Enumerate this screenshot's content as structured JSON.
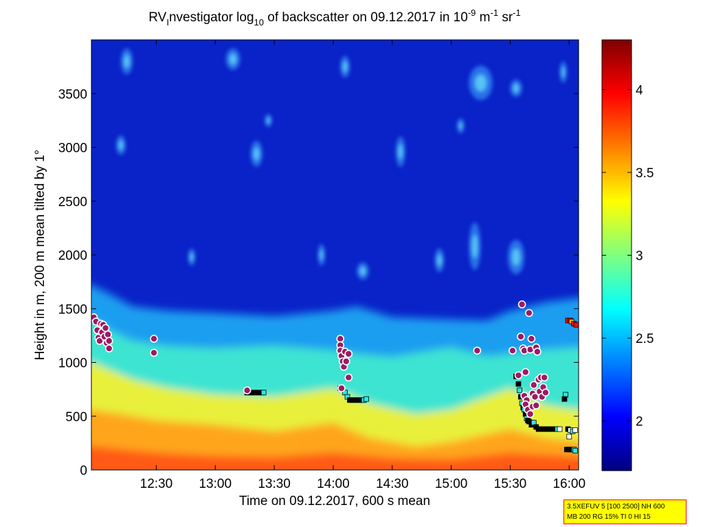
{
  "chart_data": {
    "type": "heatmap",
    "title": {
      "part1": "RV",
      "sub1": "I",
      "part2": "nvestigator log",
      "sub2": "10",
      "part3": " of backscatter on 09.12.2017 in 10",
      "sup1": "-9",
      "part4": " m",
      "sup2": "-1",
      "part5": " sr",
      "sup3": "-1"
    },
    "xlabel": "Time on 09.12.2017, 600 s mean",
    "ylabel": "Height in m, 200 m mean tilted by 1°",
    "x_range_hours": [
      11.95,
      16.08
    ],
    "ylim": [
      0,
      4000
    ],
    "x_ticks": [
      {
        "value": 12.5,
        "label": "12:30"
      },
      {
        "value": 13.0,
        "label": "13:00"
      },
      {
        "value": 13.5,
        "label": "13:30"
      },
      {
        "value": 14.0,
        "label": "14:00"
      },
      {
        "value": 14.5,
        "label": "14:30"
      },
      {
        "value": 15.0,
        "label": "15:00"
      },
      {
        "value": 15.5,
        "label": "15:30"
      },
      {
        "value": 16.0,
        "label": "16:00"
      }
    ],
    "y_ticks": [
      {
        "value": 0,
        "label": "0"
      },
      {
        "value": 500,
        "label": "500"
      },
      {
        "value": 1000,
        "label": "1000"
      },
      {
        "value": 1500,
        "label": "1500"
      },
      {
        "value": 2000,
        "label": "2000"
      },
      {
        "value": 2500,
        "label": "2500"
      },
      {
        "value": 3000,
        "label": "3000"
      },
      {
        "value": 3500,
        "label": "3500"
      }
    ],
    "colorbar": {
      "range": [
        1.7,
        4.3
      ],
      "ticks": [
        {
          "value": 2.0,
          "label": "2"
        },
        {
          "value": 2.5,
          "label": "2.5"
        },
        {
          "value": 3.0,
          "label": "3"
        },
        {
          "value": 3.5,
          "label": "3.5"
        },
        {
          "value": 4.0,
          "label": "4"
        }
      ],
      "colormap": "jet"
    },
    "boundary_layer_top": [
      [
        11.95,
        1720
      ],
      [
        12.1,
        1640
      ],
      [
        12.3,
        1520
      ],
      [
        12.6,
        1480
      ],
      [
        13.0,
        1460
      ],
      [
        13.5,
        1430
      ],
      [
        14.0,
        1480
      ],
      [
        14.2,
        1520
      ],
      [
        14.5,
        1420
      ],
      [
        15.0,
        1400
      ],
      [
        15.3,
        1390
      ],
      [
        15.5,
        1480
      ],
      [
        15.8,
        1560
      ],
      [
        16.08,
        1600
      ]
    ],
    "yellow_layer_top": [
      [
        11.95,
        1000
      ],
      [
        12.3,
        840
      ],
      [
        12.6,
        760
      ],
      [
        13.0,
        700
      ],
      [
        13.5,
        680
      ],
      [
        14.0,
        760
      ],
      [
        14.3,
        620
      ],
      [
        14.7,
        520
      ],
      [
        15.0,
        560
      ],
      [
        15.5,
        760
      ],
      [
        15.8,
        600
      ],
      [
        16.08,
        560
      ]
    ],
    "orange_layer_top": [
      [
        11.95,
        560
      ],
      [
        12.2,
        520
      ],
      [
        12.5,
        460
      ],
      [
        13.0,
        420
      ],
      [
        13.5,
        360
      ],
      [
        14.0,
        440
      ],
      [
        14.3,
        300
      ],
      [
        14.7,
        220
      ],
      [
        15.0,
        260
      ],
      [
        15.5,
        380
      ],
      [
        15.8,
        300
      ],
      [
        16.08,
        260
      ]
    ],
    "red_layer_top": [
      [
        11.95,
        220
      ],
      [
        12.5,
        160
      ],
      [
        13.0,
        130
      ],
      [
        13.5,
        120
      ],
      [
        14.0,
        160
      ],
      [
        14.5,
        110
      ],
      [
        15.0,
        100
      ],
      [
        15.5,
        160
      ],
      [
        16.08,
        120
      ]
    ],
    "cloud_patches": [
      {
        "x": 12.25,
        "y": 3800,
        "rx": 0.05,
        "ry": 120
      },
      {
        "x": 12.2,
        "y": 3020,
        "rx": 0.04,
        "ry": 90
      },
      {
        "x": 13.15,
        "y": 3820,
        "rx": 0.06,
        "ry": 100
      },
      {
        "x": 13.35,
        "y": 2940,
        "rx": 0.05,
        "ry": 120
      },
      {
        "x": 13.45,
        "y": 3250,
        "rx": 0.03,
        "ry": 60
      },
      {
        "x": 14.1,
        "y": 3750,
        "rx": 0.04,
        "ry": 100
      },
      {
        "x": 14.57,
        "y": 2960,
        "rx": 0.04,
        "ry": 140
      },
      {
        "x": 14.25,
        "y": 1850,
        "rx": 0.05,
        "ry": 80
      },
      {
        "x": 15.25,
        "y": 3600,
        "rx": 0.1,
        "ry": 160
      },
      {
        "x": 15.55,
        "y": 3550,
        "rx": 0.05,
        "ry": 80
      },
      {
        "x": 15.2,
        "y": 2080,
        "rx": 0.05,
        "ry": 220
      },
      {
        "x": 15.55,
        "y": 1980,
        "rx": 0.07,
        "ry": 160
      },
      {
        "x": 15.95,
        "y": 3700,
        "rx": 0.03,
        "ry": 100
      },
      {
        "x": 15.08,
        "y": 3200,
        "rx": 0.03,
        "ry": 70
      },
      {
        "x": 12.8,
        "y": 1980,
        "rx": 0.03,
        "ry": 80
      },
      {
        "x": 13.9,
        "y": 2000,
        "rx": 0.03,
        "ry": 100
      },
      {
        "x": 14.9,
        "y": 1950,
        "rx": 0.04,
        "ry": 110
      }
    ],
    "cloud_base_circles": [
      [
        11.97,
        1420
      ],
      [
        11.99,
        1380
      ],
      [
        12.0,
        1300
      ],
      [
        12.01,
        1230
      ],
      [
        12.02,
        1200
      ],
      [
        12.03,
        1360
      ],
      [
        12.04,
        1280
      ],
      [
        12.05,
        1350
      ],
      [
        12.06,
        1240
      ],
      [
        12.07,
        1320
      ],
      [
        12.08,
        1180
      ],
      [
        12.09,
        1260
      ],
      [
        12.1,
        1130
      ],
      [
        12.1,
        1200
      ],
      [
        12.48,
        1220
      ],
      [
        12.48,
        1090
      ],
      [
        13.27,
        740
      ],
      [
        14.06,
        1220
      ],
      [
        14.06,
        1160
      ],
      [
        14.06,
        1110
      ],
      [
        14.07,
        1060
      ],
      [
        14.08,
        1010
      ],
      [
        14.09,
        960
      ],
      [
        14.1,
        1100
      ],
      [
        14.11,
        1010
      ],
      [
        14.13,
        1080
      ],
      [
        14.13,
        860
      ],
      [
        14.07,
        760
      ],
      [
        15.22,
        1110
      ],
      [
        15.52,
        1110
      ],
      [
        15.57,
        880
      ],
      [
        15.59,
        1240
      ],
      [
        15.6,
        1540
      ],
      [
        15.61,
        1130
      ],
      [
        15.62,
        1110
      ],
      [
        15.63,
        910
      ],
      [
        15.62,
        690
      ],
      [
        15.64,
        650
      ],
      [
        15.66,
        1460
      ],
      [
        15.67,
        1120
      ],
      [
        15.68,
        1220
      ],
      [
        15.69,
        710
      ],
      [
        15.7,
        790
      ],
      [
        15.71,
        680
      ],
      [
        15.72,
        1140
      ],
      [
        15.73,
        1100
      ],
      [
        15.74,
        840
      ],
      [
        15.75,
        730
      ],
      [
        15.76,
        860
      ],
      [
        15.77,
        680
      ],
      [
        15.78,
        770
      ],
      [
        15.79,
        860
      ],
      [
        15.8,
        720
      ],
      [
        15.63,
        610
      ],
      [
        15.65,
        560
      ],
      [
        15.67,
        520
      ],
      [
        15.69,
        590
      ],
      [
        15.72,
        600
      ]
    ],
    "cloud_base_squares": [
      {
        "x": 13.27,
        "y": 720,
        "c": "black"
      },
      {
        "x": 13.29,
        "y": 720,
        "c": "black"
      },
      {
        "x": 13.31,
        "y": 720,
        "c": "black"
      },
      {
        "x": 13.33,
        "y": 720,
        "c": "black"
      },
      {
        "x": 13.35,
        "y": 720,
        "c": "black"
      },
      {
        "x": 13.37,
        "y": 720,
        "c": "black"
      },
      {
        "x": 13.39,
        "y": 720,
        "c": "black"
      },
      {
        "x": 13.41,
        "y": 720,
        "c": "cyan"
      },
      {
        "x": 14.06,
        "y": 760,
        "c": "black"
      },
      {
        "x": 14.1,
        "y": 720,
        "c": "cyan"
      },
      {
        "x": 14.12,
        "y": 680,
        "c": "cyan"
      },
      {
        "x": 14.14,
        "y": 650,
        "c": "black"
      },
      {
        "x": 14.16,
        "y": 650,
        "c": "black"
      },
      {
        "x": 14.18,
        "y": 650,
        "c": "black"
      },
      {
        "x": 14.2,
        "y": 650,
        "c": "black"
      },
      {
        "x": 14.22,
        "y": 650,
        "c": "black"
      },
      {
        "x": 14.24,
        "y": 650,
        "c": "black"
      },
      {
        "x": 14.26,
        "y": 650,
        "c": "cyan"
      },
      {
        "x": 14.28,
        "y": 660,
        "c": "cyan"
      },
      {
        "x": 15.55,
        "y": 870,
        "c": "black"
      },
      {
        "x": 15.57,
        "y": 800,
        "c": "black"
      },
      {
        "x": 15.58,
        "y": 740,
        "c": "cyan"
      },
      {
        "x": 15.59,
        "y": 680,
        "c": "black"
      },
      {
        "x": 15.6,
        "y": 620,
        "c": "cyan"
      },
      {
        "x": 15.61,
        "y": 580,
        "c": "black"
      },
      {
        "x": 15.62,
        "y": 560,
        "c": "cyan"
      },
      {
        "x": 15.63,
        "y": 520,
        "c": "black"
      },
      {
        "x": 15.64,
        "y": 480,
        "c": "cyan"
      },
      {
        "x": 15.65,
        "y": 460,
        "c": "black"
      },
      {
        "x": 15.66,
        "y": 450,
        "c": "black"
      },
      {
        "x": 15.68,
        "y": 420,
        "c": "black"
      },
      {
        "x": 15.7,
        "y": 440,
        "c": "cyan"
      },
      {
        "x": 15.72,
        "y": 400,
        "c": "black"
      },
      {
        "x": 15.74,
        "y": 380,
        "c": "black"
      },
      {
        "x": 15.76,
        "y": 380,
        "c": "black"
      },
      {
        "x": 15.78,
        "y": 380,
        "c": "black"
      },
      {
        "x": 15.8,
        "y": 380,
        "c": "black"
      },
      {
        "x": 15.82,
        "y": 380,
        "c": "black"
      },
      {
        "x": 15.84,
        "y": 380,
        "c": "black"
      },
      {
        "x": 15.86,
        "y": 380,
        "c": "black"
      },
      {
        "x": 15.88,
        "y": 380,
        "c": "black"
      },
      {
        "x": 15.9,
        "y": 380,
        "c": "cyan"
      },
      {
        "x": 15.92,
        "y": 380,
        "c": "white"
      },
      {
        "x": 15.97,
        "y": 700,
        "c": "cyan"
      },
      {
        "x": 15.96,
        "y": 660,
        "c": "black"
      },
      {
        "x": 15.99,
        "y": 380,
        "c": "black"
      },
      {
        "x": 16.01,
        "y": 370,
        "c": "white"
      },
      {
        "x": 16.0,
        "y": 310,
        "c": "white"
      },
      {
        "x": 16.03,
        "y": 360,
        "c": "cyan"
      },
      {
        "x": 16.05,
        "y": 370,
        "c": "white"
      },
      {
        "x": 15.98,
        "y": 190,
        "c": "black"
      },
      {
        "x": 16.0,
        "y": 190,
        "c": "black"
      },
      {
        "x": 16.02,
        "y": 190,
        "c": "black"
      },
      {
        "x": 16.04,
        "y": 190,
        "c": "cyan"
      },
      {
        "x": 16.05,
        "y": 180,
        "c": "cyan"
      },
      {
        "x": 15.99,
        "y": 1390,
        "c": "red"
      },
      {
        "x": 16.01,
        "y": 1390,
        "c": "red"
      },
      {
        "x": 16.02,
        "y": 1380,
        "c": "orange"
      },
      {
        "x": 16.04,
        "y": 1360,
        "c": "red"
      },
      {
        "x": 16.06,
        "y": 1350,
        "c": "red"
      }
    ]
  },
  "info_box": {
    "line1": "3.5XEFUV 5 [100 2500] NH 600",
    "line2": "MB 200 RG 15% TI 0 HI 15"
  },
  "colors": {
    "background": "#ffffff",
    "info_box_fill": "#ffff00",
    "info_box_border": "#ff0000",
    "circle_fill": "#9b1b63",
    "circle_stroke": "#ffffff"
  }
}
